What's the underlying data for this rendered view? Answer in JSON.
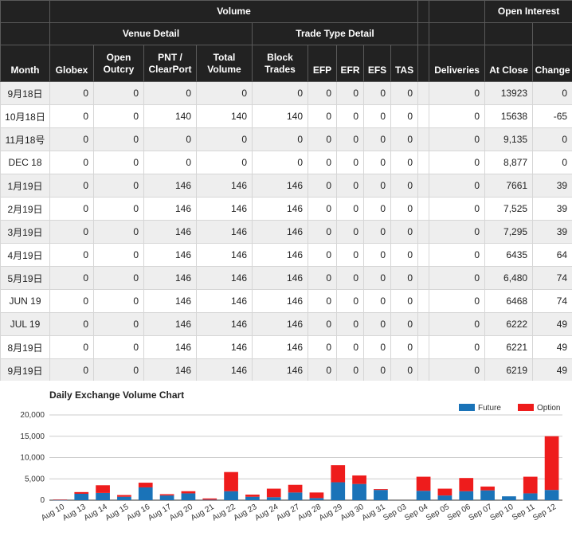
{
  "table": {
    "header": {
      "volume": "Volume",
      "open_interest": "Open Interest",
      "venue_detail": "Venue Detail",
      "trade_type_detail": "Trade Type Detail",
      "month": "Month",
      "globex": "Globex",
      "open_outcry": "Open Outcry",
      "pnt_clearport": "PNT / ClearPort",
      "total_volume": "Total Volume",
      "block_trades": "Block Trades",
      "efp": "EFP",
      "efr": "EFR",
      "efs": "EFS",
      "tas": "TAS",
      "deliveries": "Deliveries",
      "at_close": "At Close",
      "change": "Change"
    },
    "rows": [
      [
        "9月18日",
        "0",
        "0",
        "0",
        "0",
        "0",
        "0",
        "0",
        "0",
        "0",
        "0",
        "13923",
        "0"
      ],
      [
        "10月18日",
        "0",
        "0",
        "140",
        "140",
        "140",
        "0",
        "0",
        "0",
        "0",
        "0",
        "15638",
        "-65"
      ],
      [
        "11月18号",
        "0",
        "0",
        "0",
        "0",
        "0",
        "0",
        "0",
        "0",
        "0",
        "0",
        "9,135",
        "0"
      ],
      [
        "DEC 18",
        "0",
        "0",
        "0",
        "0",
        "0",
        "0",
        "0",
        "0",
        "0",
        "0",
        "8,877",
        "0"
      ],
      [
        "1月19日",
        "0",
        "0",
        "146",
        "146",
        "146",
        "0",
        "0",
        "0",
        "0",
        "0",
        "7661",
        "39"
      ],
      [
        "2月19日",
        "0",
        "0",
        "146",
        "146",
        "146",
        "0",
        "0",
        "0",
        "0",
        "0",
        "7,525",
        "39"
      ],
      [
        "3月19日",
        "0",
        "0",
        "146",
        "146",
        "146",
        "0",
        "0",
        "0",
        "0",
        "0",
        "7,295",
        "39"
      ],
      [
        "4月19日",
        "0",
        "0",
        "146",
        "146",
        "146",
        "0",
        "0",
        "0",
        "0",
        "0",
        "6435",
        "64"
      ],
      [
        "5月19日",
        "0",
        "0",
        "146",
        "146",
        "146",
        "0",
        "0",
        "0",
        "0",
        "0",
        "6,480",
        "74"
      ],
      [
        "JUN 19",
        "0",
        "0",
        "146",
        "146",
        "146",
        "0",
        "0",
        "0",
        "0",
        "0",
        "6468",
        "74"
      ],
      [
        "JUL 19",
        "0",
        "0",
        "146",
        "146",
        "146",
        "0",
        "0",
        "0",
        "0",
        "0",
        "6222",
        "49"
      ],
      [
        "8月19日",
        "0",
        "0",
        "146",
        "146",
        "146",
        "0",
        "0",
        "0",
        "0",
        "0",
        "6221",
        "49"
      ],
      [
        "9月19日",
        "0",
        "0",
        "146",
        "146",
        "146",
        "0",
        "0",
        "0",
        "0",
        "0",
        "6219",
        "49"
      ]
    ]
  },
  "chart_data": {
    "type": "bar",
    "stacked": true,
    "title": "Daily Exchange Volume Chart",
    "categories": [
      "Aug 10",
      "Aug 13",
      "Aug 14",
      "Aug 15",
      "Aug 16",
      "Aug 17",
      "Aug 20",
      "Aug 21",
      "Aug 22",
      "Aug 23",
      "Aug 24",
      "Aug 27",
      "Aug 28",
      "Aug 29",
      "Aug 30",
      "Aug 31",
      "Sep 03",
      "Sep 04",
      "Sep 05",
      "Sep 06",
      "Sep 07",
      "Sep 10",
      "Sep 11",
      "Sep 12"
    ],
    "series": [
      {
        "name": "Future",
        "color": "#1a73b8",
        "values": [
          50,
          1500,
          1700,
          800,
          3000,
          1100,
          1600,
          100,
          2100,
          800,
          700,
          1800,
          500,
          4200,
          3800,
          2400,
          0,
          2200,
          1100,
          2100,
          2300,
          900,
          1600,
          2400
        ]
      },
      {
        "name": "Option",
        "color": "#ee1c1c",
        "values": [
          100,
          400,
          1800,
          400,
          1100,
          300,
          500,
          300,
          4500,
          500,
          2000,
          1800,
          1300,
          4000,
          2000,
          200,
          0,
          3300,
          1600,
          3100,
          900,
          0,
          3900,
          12600
        ]
      }
    ],
    "y_ticks": [
      "0",
      "5,000",
      "10,000",
      "15,000",
      "20,000"
    ],
    "ylim": [
      0,
      20000
    ],
    "legend_position": "top-right",
    "grid": true
  }
}
